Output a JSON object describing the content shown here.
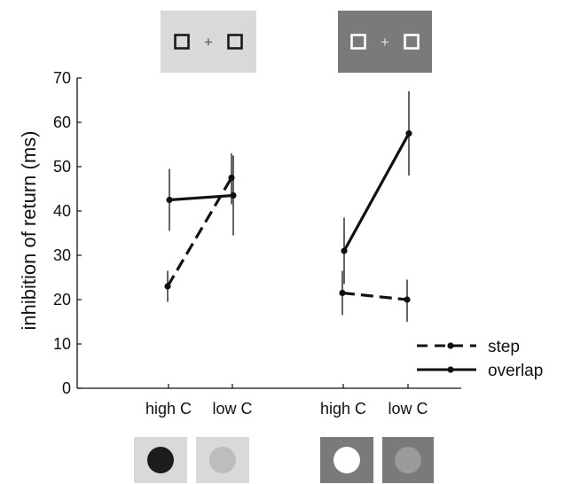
{
  "chart_data": {
    "type": "line",
    "ylabel": "inhibition of return (ms)",
    "xlabel": "",
    "ylim": [
      0,
      70
    ],
    "yticks": [
      0,
      10,
      20,
      30,
      40,
      50,
      60,
      70
    ],
    "categories": [
      "high C",
      "low C",
      "high C",
      "low C"
    ],
    "panels": [
      {
        "categories": [
          "high C",
          "low C"
        ],
        "background": "light"
      },
      {
        "categories": [
          "high C",
          "low C"
        ],
        "background": "dark"
      }
    ],
    "series": [
      {
        "name": "step",
        "style": "dashed",
        "panels": [
          {
            "values": [
              23,
              47.5
            ],
            "err_low": [
              19.5,
              41.5
            ],
            "err_high": [
              26.5,
              53
            ]
          },
          {
            "values": [
              21.5,
              20
            ],
            "err_low": [
              16.5,
              15
            ],
            "err_high": [
              26.5,
              24.5
            ]
          }
        ]
      },
      {
        "name": "overlap",
        "style": "solid",
        "panels": [
          {
            "values": [
              42.5,
              43.5
            ],
            "err_low": [
              35.5,
              34.5
            ],
            "err_high": [
              49.5,
              52.5
            ]
          },
          {
            "values": [
              31,
              57.5
            ],
            "err_low": [
              23.5,
              48
            ],
            "err_high": [
              38.5,
              67
            ]
          }
        ]
      }
    ],
    "legend": {
      "placement": "bottom-right"
    },
    "grid": false
  },
  "stimuli": {
    "fixation_glyph": "+",
    "top_panels": [
      {
        "bg": "#d9d9d9",
        "box_color": "#1a1a1a",
        "cross_color": "#555555"
      },
      {
        "bg": "#7a7a7a",
        "box_color": "#ffffff",
        "cross_color": "#dddddd"
      }
    ],
    "bottom_tiles": [
      {
        "bg": "#d9d9d9",
        "disc": "#1c1c1c"
      },
      {
        "bg": "#d9d9d9",
        "disc": "#bdbdbd"
      },
      {
        "bg": "#7a7a7a",
        "disc": "#ffffff"
      },
      {
        "bg": "#7a7a7a",
        "disc": "#9a9a9a"
      }
    ]
  }
}
